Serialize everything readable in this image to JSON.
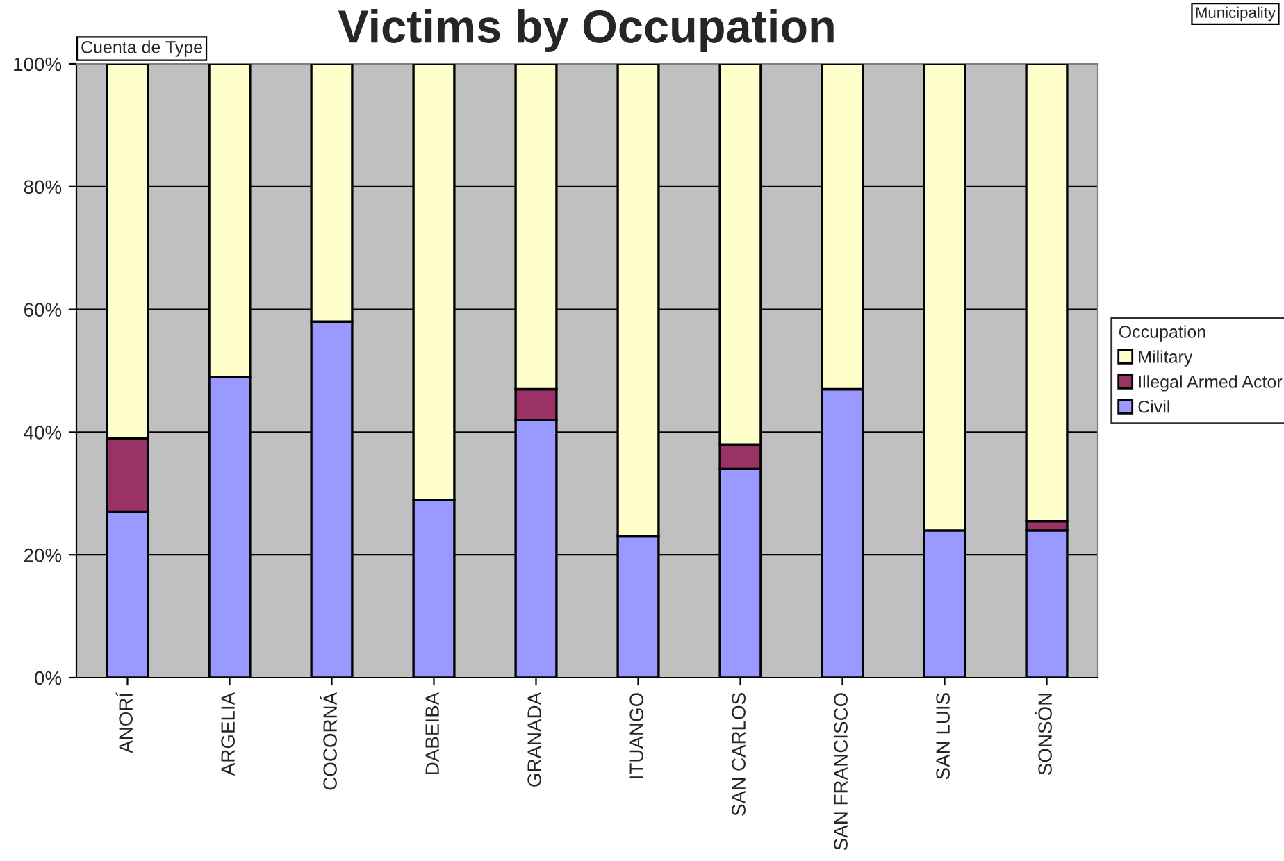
{
  "chart_data": {
    "type": "bar",
    "stacked": true,
    "title": "Victims by Occupation",
    "categories": [
      "ANORÍ",
      "ARGELIA",
      "COCORNÁ",
      "DABEIBA",
      "GRANADA",
      "ITUANGO",
      "SAN CARLOS",
      "SAN FRANCISCO",
      "SAN LUIS",
      "SONSÓN"
    ],
    "series": [
      {
        "name": "Civil",
        "color": "#9999ff",
        "values": [
          27,
          49,
          58,
          29,
          42,
          23,
          34,
          47,
          24,
          24
        ]
      },
      {
        "name": "Illegal Armed Actor",
        "color": "#993366",
        "values": [
          12,
          null,
          null,
          null,
          5,
          null,
          4,
          null,
          null,
          1.5
        ]
      },
      {
        "name": "Military",
        "color": "#ffffcc",
        "values": [
          61,
          51,
          42,
          71,
          53,
          77,
          62,
          53,
          76,
          74.5
        ]
      }
    ],
    "ylim": [
      0,
      100
    ],
    "yticks": [
      {
        "value": 0,
        "label": "0%"
      },
      {
        "value": 20,
        "label": "20%"
      },
      {
        "value": 40,
        "label": "40%"
      },
      {
        "value": 60,
        "label": "60%"
      },
      {
        "value": 80,
        "label": "80%"
      },
      {
        "value": 100,
        "label": "100%"
      }
    ],
    "grid": "y",
    "legend": "right",
    "legend_title": "Occupation",
    "annotations": [
      "Cuenta de Type",
      "Municipality"
    ]
  }
}
